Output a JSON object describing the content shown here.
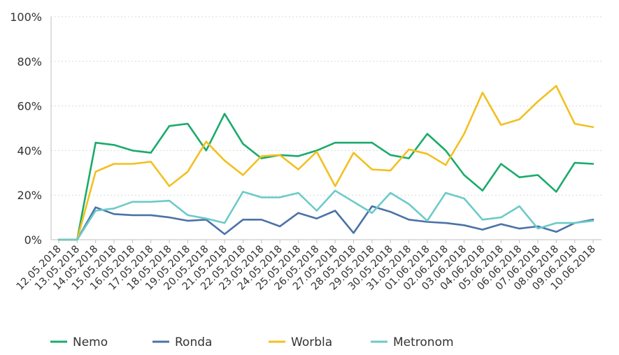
{
  "chart_data": {
    "type": "line",
    "title": "",
    "xlabel": "",
    "ylabel": "",
    "ylim": [
      0,
      100
    ],
    "yticks": [
      "0%",
      "20%",
      "40%",
      "60%",
      "80%",
      "100%"
    ],
    "ytick_values": [
      0,
      20,
      40,
      60,
      80,
      100
    ],
    "grid": true,
    "legend_position": "bottom",
    "categories": [
      "12.05.2018",
      "13.05.2018",
      "14.05.2018",
      "15.05.2018",
      "16.05.2018",
      "17.05.2018",
      "18.05.2018",
      "19.05.2018",
      "20.05.2018",
      "21.05.2018",
      "22.05.2018",
      "23.05.2018",
      "24.05.2018",
      "25.05.2018",
      "26.05.2018",
      "27.05.2018",
      "28.05.2018",
      "29.05.2018",
      "30.05.2018",
      "31.05.2018",
      "01.06.2018",
      "02.06.2018",
      "03.06.2018",
      "04.06.2018",
      "05.06.2018",
      "06.06.2018",
      "07.06.2018",
      "08.06.2018",
      "09.06.2018",
      "10.06.2018"
    ],
    "series": [
      {
        "name": "Nemo",
        "color": "#1aab6c",
        "values": [
          0,
          0,
          43.5,
          42.5,
          40,
          39,
          51,
          52,
          40,
          56.5,
          43,
          36.5,
          38,
          37.5,
          40,
          43.5,
          43.5,
          43.5,
          38,
          36.5,
          47.5,
          40,
          29,
          22,
          34,
          28,
          29,
          21.5,
          34.5,
          34
        ]
      },
      {
        "name": "Ronda",
        "color": "#4a72a7",
        "values": [
          0,
          0,
          14.5,
          11.5,
          11,
          11,
          10,
          8.5,
          9,
          2.5,
          9,
          9,
          6,
          12,
          9.5,
          13,
          3,
          15,
          12.5,
          9,
          8,
          7.5,
          6.5,
          4.5,
          7,
          5,
          6,
          3.5,
          7.5,
          9
        ]
      },
      {
        "name": "Worbla",
        "color": "#f2c01f",
        "values": [
          0,
          0,
          30.5,
          34,
          34,
          35,
          24,
          30.5,
          44,
          35.5,
          29,
          37.5,
          38,
          31.5,
          39.5,
          24,
          39,
          31.5,
          31,
          40.5,
          38.5,
          33.5,
          47.5,
          66,
          51.5,
          54,
          62,
          69,
          52,
          50.5
        ]
      },
      {
        "name": "Metronom",
        "color": "#6ccac9",
        "values": [
          0,
          0,
          13,
          14,
          17,
          17,
          17.5,
          11,
          9.5,
          7.5,
          21.5,
          19,
          19,
          21,
          13,
          22,
          17,
          12,
          21,
          16,
          8.5,
          21,
          18.5,
          9,
          10,
          15,
          5,
          7.5,
          7.5,
          8.5
        ]
      }
    ]
  }
}
